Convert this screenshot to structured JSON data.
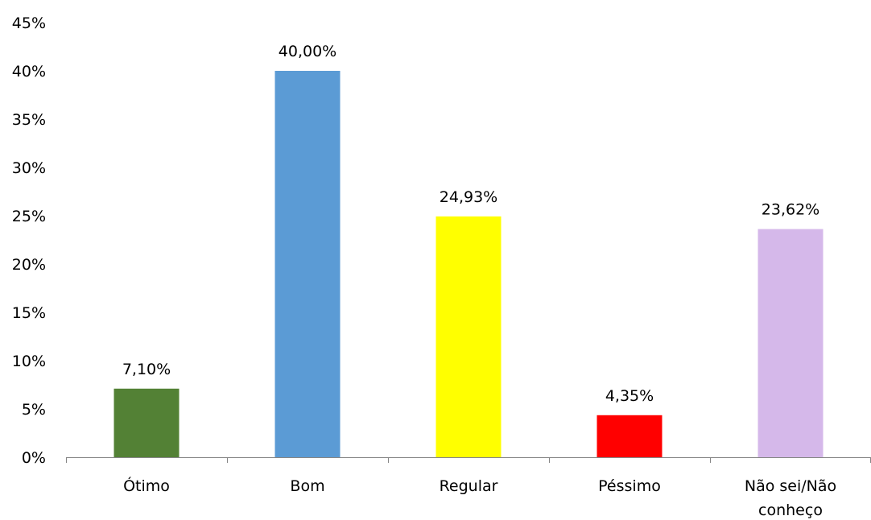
{
  "chart_data": {
    "type": "bar",
    "title": "",
    "xlabel": "",
    "ylabel": "",
    "ylim": [
      0,
      45
    ],
    "y_ticks": [
      "0%",
      "5%",
      "10%",
      "15%",
      "20%",
      "25%",
      "30%",
      "35%",
      "40%",
      "45%"
    ],
    "grid": false,
    "legend": "none",
    "categories": [
      [
        "Ótimo"
      ],
      [
        "Bom"
      ],
      [
        "Regular"
      ],
      [
        "Péssimo"
      ],
      [
        "Não sei/Não",
        "conheço"
      ]
    ],
    "values": [
      7.1,
      40.0,
      24.93,
      4.35,
      23.62
    ],
    "data_labels": [
      "7,10%",
      "40,00%",
      "24,93%",
      "4,35%",
      "23,62%"
    ],
    "colors": [
      "#538135",
      "#5b9bd5",
      "#ffff00",
      "#ff0000",
      "#d5b8ea"
    ],
    "axis_color": "#868686"
  }
}
